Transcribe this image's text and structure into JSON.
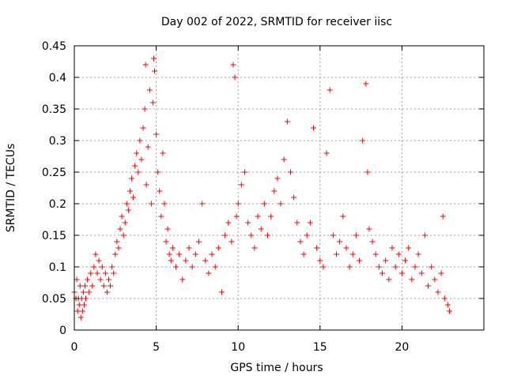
{
  "chart_data": {
    "type": "scatter",
    "title": "Day 002 of 2022, SRMTID for receiver iisc",
    "xlabel": "GPS time / hours",
    "ylabel": "SRMTID / TECUs",
    "xlim": [
      0,
      25
    ],
    "ylim": [
      0,
      0.45
    ],
    "xticks": [
      0,
      5,
      10,
      15,
      20
    ],
    "yticks": [
      0,
      0.05,
      0.1,
      0.15,
      0.2,
      0.25,
      0.3,
      0.35,
      0.4,
      0.45
    ],
    "xtick_labels": [
      "0",
      "5",
      "10",
      "15",
      "20"
    ],
    "ytick_labels": [
      "0",
      "0.05",
      "0.1",
      "0.15",
      "0.2",
      "0.25",
      "0.3",
      "0.35",
      "0.4",
      "0.45"
    ],
    "grid": true,
    "marker": "plus",
    "colors": {
      "series": "#ff0000",
      "grid": "#a0a0a0",
      "axis": "#000000"
    },
    "series": [
      {
        "points": [
          [
            0.0,
            0.06
          ],
          [
            0.1,
            0.05
          ],
          [
            0.15,
            0.08
          ],
          [
            0.2,
            0.03
          ],
          [
            0.25,
            0.05
          ],
          [
            0.3,
            0.04
          ],
          [
            0.35,
            0.07
          ],
          [
            0.4,
            0.02
          ],
          [
            0.45,
            0.05
          ],
          [
            0.5,
            0.03
          ],
          [
            0.55,
            0.06
          ],
          [
            0.6,
            0.04
          ],
          [
            0.65,
            0.07
          ],
          [
            0.7,
            0.05
          ],
          [
            0.8,
            0.08
          ],
          [
            0.9,
            0.06
          ],
          [
            1.0,
            0.09
          ],
          [
            1.1,
            0.07
          ],
          [
            1.2,
            0.1
          ],
          [
            1.3,
            0.12
          ],
          [
            1.4,
            0.09
          ],
          [
            1.5,
            0.11
          ],
          [
            1.6,
            0.08
          ],
          [
            1.7,
            0.1
          ],
          [
            1.8,
            0.07
          ],
          [
            1.9,
            0.09
          ],
          [
            2.0,
            0.06
          ],
          [
            2.1,
            0.08
          ],
          [
            2.2,
            0.07
          ],
          [
            2.3,
            0.1
          ],
          [
            2.4,
            0.09
          ],
          [
            2.5,
            0.12
          ],
          [
            2.6,
            0.14
          ],
          [
            2.7,
            0.13
          ],
          [
            2.8,
            0.16
          ],
          [
            2.9,
            0.18
          ],
          [
            3.0,
            0.15
          ],
          [
            3.1,
            0.17
          ],
          [
            3.2,
            0.2
          ],
          [
            3.3,
            0.19
          ],
          [
            3.4,
            0.22
          ],
          [
            3.5,
            0.24
          ],
          [
            3.6,
            0.21
          ],
          [
            3.7,
            0.26
          ],
          [
            3.8,
            0.28
          ],
          [
            3.9,
            0.25
          ],
          [
            4.0,
            0.3
          ],
          [
            4.1,
            0.27
          ],
          [
            4.2,
            0.32
          ],
          [
            4.3,
            0.35
          ],
          [
            4.35,
            0.42
          ],
          [
            4.4,
            0.23
          ],
          [
            4.5,
            0.29
          ],
          [
            4.6,
            0.38
          ],
          [
            4.7,
            0.2
          ],
          [
            4.8,
            0.36
          ],
          [
            4.85,
            0.43
          ],
          [
            4.9,
            0.41
          ],
          [
            5.0,
            0.31
          ],
          [
            5.1,
            0.25
          ],
          [
            5.2,
            0.22
          ],
          [
            5.3,
            0.18
          ],
          [
            5.4,
            0.28
          ],
          [
            5.5,
            0.2
          ],
          [
            5.6,
            0.14
          ],
          [
            5.7,
            0.16
          ],
          [
            5.8,
            0.12
          ],
          [
            5.9,
            0.11
          ],
          [
            6.0,
            0.13
          ],
          [
            6.2,
            0.1
          ],
          [
            6.4,
            0.12
          ],
          [
            6.6,
            0.08
          ],
          [
            6.8,
            0.11
          ],
          [
            7.0,
            0.13
          ],
          [
            7.2,
            0.1
          ],
          [
            7.4,
            0.12
          ],
          [
            7.6,
            0.14
          ],
          [
            7.8,
            0.2
          ],
          [
            8.0,
            0.11
          ],
          [
            8.2,
            0.09
          ],
          [
            8.4,
            0.12
          ],
          [
            8.6,
            0.1
          ],
          [
            8.8,
            0.13
          ],
          [
            9.0,
            0.06
          ],
          [
            9.2,
            0.15
          ],
          [
            9.4,
            0.17
          ],
          [
            9.6,
            0.14
          ],
          [
            9.7,
            0.42
          ],
          [
            9.8,
            0.4
          ],
          [
            9.9,
            0.18
          ],
          [
            10.0,
            0.2
          ],
          [
            10.2,
            0.23
          ],
          [
            10.4,
            0.25
          ],
          [
            10.6,
            0.17
          ],
          [
            10.8,
            0.15
          ],
          [
            11.0,
            0.13
          ],
          [
            11.2,
            0.18
          ],
          [
            11.4,
            0.16
          ],
          [
            11.6,
            0.2
          ],
          [
            11.8,
            0.15
          ],
          [
            12.0,
            0.18
          ],
          [
            12.2,
            0.22
          ],
          [
            12.4,
            0.24
          ],
          [
            12.6,
            0.2
          ],
          [
            12.8,
            0.27
          ],
          [
            13.0,
            0.33
          ],
          [
            13.2,
            0.25
          ],
          [
            13.4,
            0.21
          ],
          [
            13.6,
            0.17
          ],
          [
            13.8,
            0.14
          ],
          [
            14.0,
            0.12
          ],
          [
            14.2,
            0.15
          ],
          [
            14.4,
            0.17
          ],
          [
            14.6,
            0.32
          ],
          [
            14.8,
            0.13
          ],
          [
            15.0,
            0.11
          ],
          [
            15.2,
            0.1
          ],
          [
            15.4,
            0.28
          ],
          [
            15.6,
            0.38
          ],
          [
            15.8,
            0.15
          ],
          [
            16.0,
            0.12
          ],
          [
            16.2,
            0.14
          ],
          [
            16.4,
            0.18
          ],
          [
            16.6,
            0.13
          ],
          [
            16.8,
            0.1
          ],
          [
            17.0,
            0.12
          ],
          [
            17.2,
            0.15
          ],
          [
            17.4,
            0.11
          ],
          [
            17.6,
            0.3
          ],
          [
            17.8,
            0.39
          ],
          [
            17.9,
            0.25
          ],
          [
            18.0,
            0.16
          ],
          [
            18.2,
            0.14
          ],
          [
            18.4,
            0.12
          ],
          [
            18.6,
            0.1
          ],
          [
            18.8,
            0.09
          ],
          [
            19.0,
            0.11
          ],
          [
            19.2,
            0.08
          ],
          [
            19.4,
            0.13
          ],
          [
            19.6,
            0.1
          ],
          [
            19.8,
            0.12
          ],
          [
            20.0,
            0.09
          ],
          [
            20.2,
            0.11
          ],
          [
            20.4,
            0.13
          ],
          [
            20.6,
            0.08
          ],
          [
            20.8,
            0.1
          ],
          [
            21.0,
            0.12
          ],
          [
            21.2,
            0.09
          ],
          [
            21.4,
            0.15
          ],
          [
            21.6,
            0.07
          ],
          [
            21.8,
            0.1
          ],
          [
            22.0,
            0.08
          ],
          [
            22.2,
            0.06
          ],
          [
            22.4,
            0.09
          ],
          [
            22.5,
            0.18
          ],
          [
            22.6,
            0.05
          ],
          [
            22.8,
            0.04
          ],
          [
            22.9,
            0.03
          ]
        ]
      }
    ]
  }
}
